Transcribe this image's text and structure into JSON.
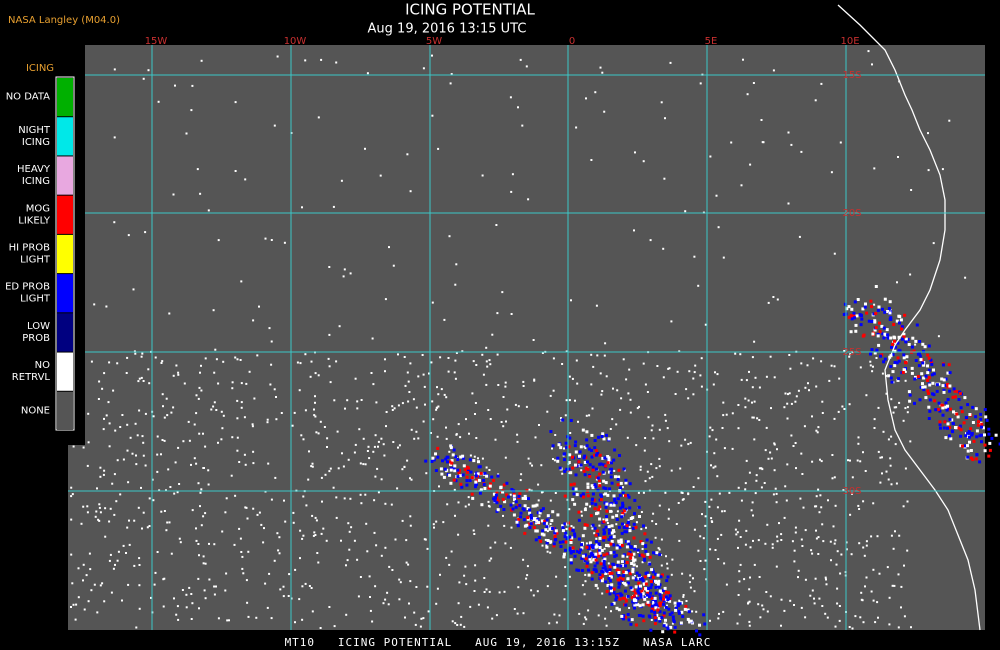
{
  "header": {
    "source": "NASA Langley (M04.0)",
    "title": "ICING POTENTIAL",
    "subtitle": "Aug 19, 2016 13:15 UTC"
  },
  "map": {
    "longitude_labels": [
      "15W",
      "10W",
      "5W",
      "0",
      "5E",
      "10E"
    ],
    "latitude_labels": [
      "15S",
      "20S",
      "25S",
      "30S"
    ]
  },
  "legend": {
    "title": "ICING",
    "items": [
      {
        "lines": [
          "NO DATA"
        ],
        "color": "#00b000"
      },
      {
        "lines": [
          "NIGHT",
          "ICING"
        ],
        "color": "#00e8e8"
      },
      {
        "lines": [
          "HEAVY",
          "ICING"
        ],
        "color": "#e8a8e0"
      },
      {
        "lines": [
          "MOG",
          "LIKELY"
        ],
        "color": "#ff0000"
      },
      {
        "lines": [
          "HI PROB",
          "LIGHT"
        ],
        "color": "#ffff00"
      },
      {
        "lines": [
          "ED PROB",
          "LIGHT"
        ],
        "color": "#0000ff"
      },
      {
        "lines": [
          "LOW",
          "PROB"
        ],
        "color": "#000080"
      },
      {
        "lines": [
          "NO",
          "RETRVL"
        ],
        "color": "#ffffff"
      },
      {
        "lines": [
          "NONE"
        ],
        "color": "#555555"
      }
    ]
  },
  "footer": "MT10   ICING POTENTIAL   AUG 19, 2016 13:15Z   NASA LARC"
}
